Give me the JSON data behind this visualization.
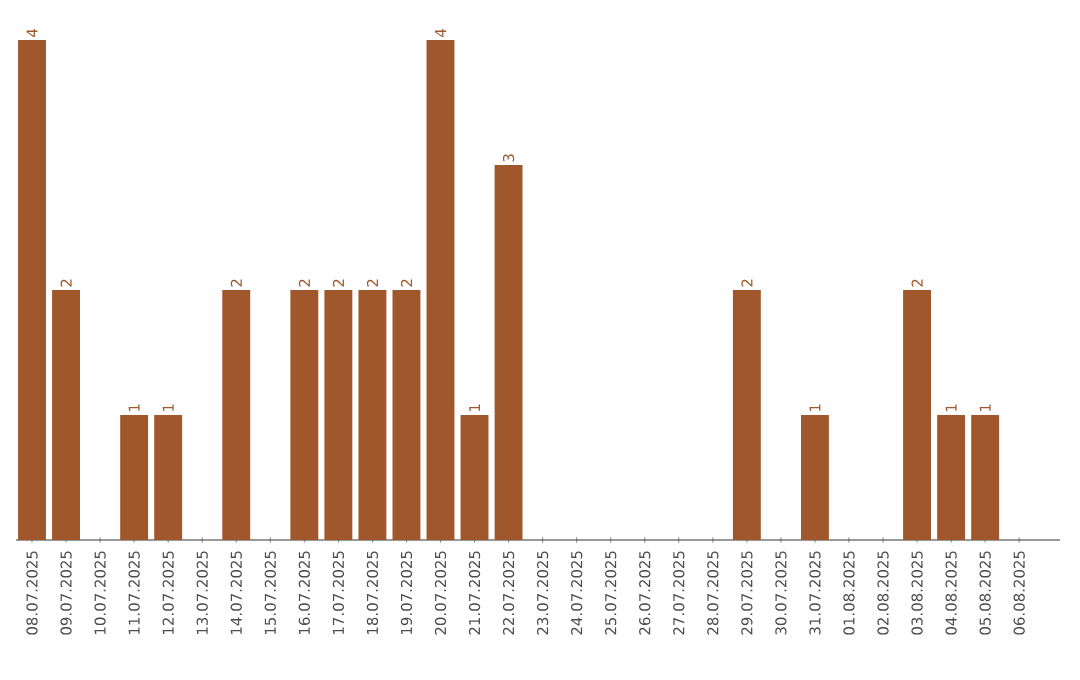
{
  "chart_data": {
    "type": "bar",
    "categories": [
      "08.07.2025",
      "09.07.2025",
      "10.07.2025",
      "11.07.2025",
      "12.07.2025",
      "13.07.2025",
      "14.07.2025",
      "15.07.2025",
      "16.07.2025",
      "17.07.2025",
      "18.07.2025",
      "19.07.2025",
      "20.07.2025",
      "21.07.2025",
      "22.07.2025",
      "23.07.2025",
      "24.07.2025",
      "25.07.2025",
      "26.07.2025",
      "27.07.2025",
      "28.07.2025",
      "29.07.2025",
      "30.07.2025",
      "31.07.2025",
      "01.08.2025",
      "02.08.2025",
      "03.08.2025",
      "04.08.2025",
      "05.08.2025",
      "06.08.2025"
    ],
    "values": [
      4,
      2,
      0,
      1,
      1,
      0,
      2,
      0,
      2,
      2,
      2,
      2,
      4,
      1,
      3,
      0,
      0,
      0,
      0,
      0,
      0,
      2,
      0,
      1,
      0,
      0,
      2,
      1,
      1,
      0
    ],
    "value_labels": [
      "4",
      "2",
      null,
      "1",
      "1",
      null,
      "2",
      null,
      "2",
      "2",
      "2",
      "2",
      "4",
      "1",
      "3",
      null,
      null,
      null,
      null,
      null,
      null,
      "2",
      null,
      "1",
      null,
      null,
      "2",
      "1",
      "1",
      null
    ],
    "color": "#a0572b"
  }
}
